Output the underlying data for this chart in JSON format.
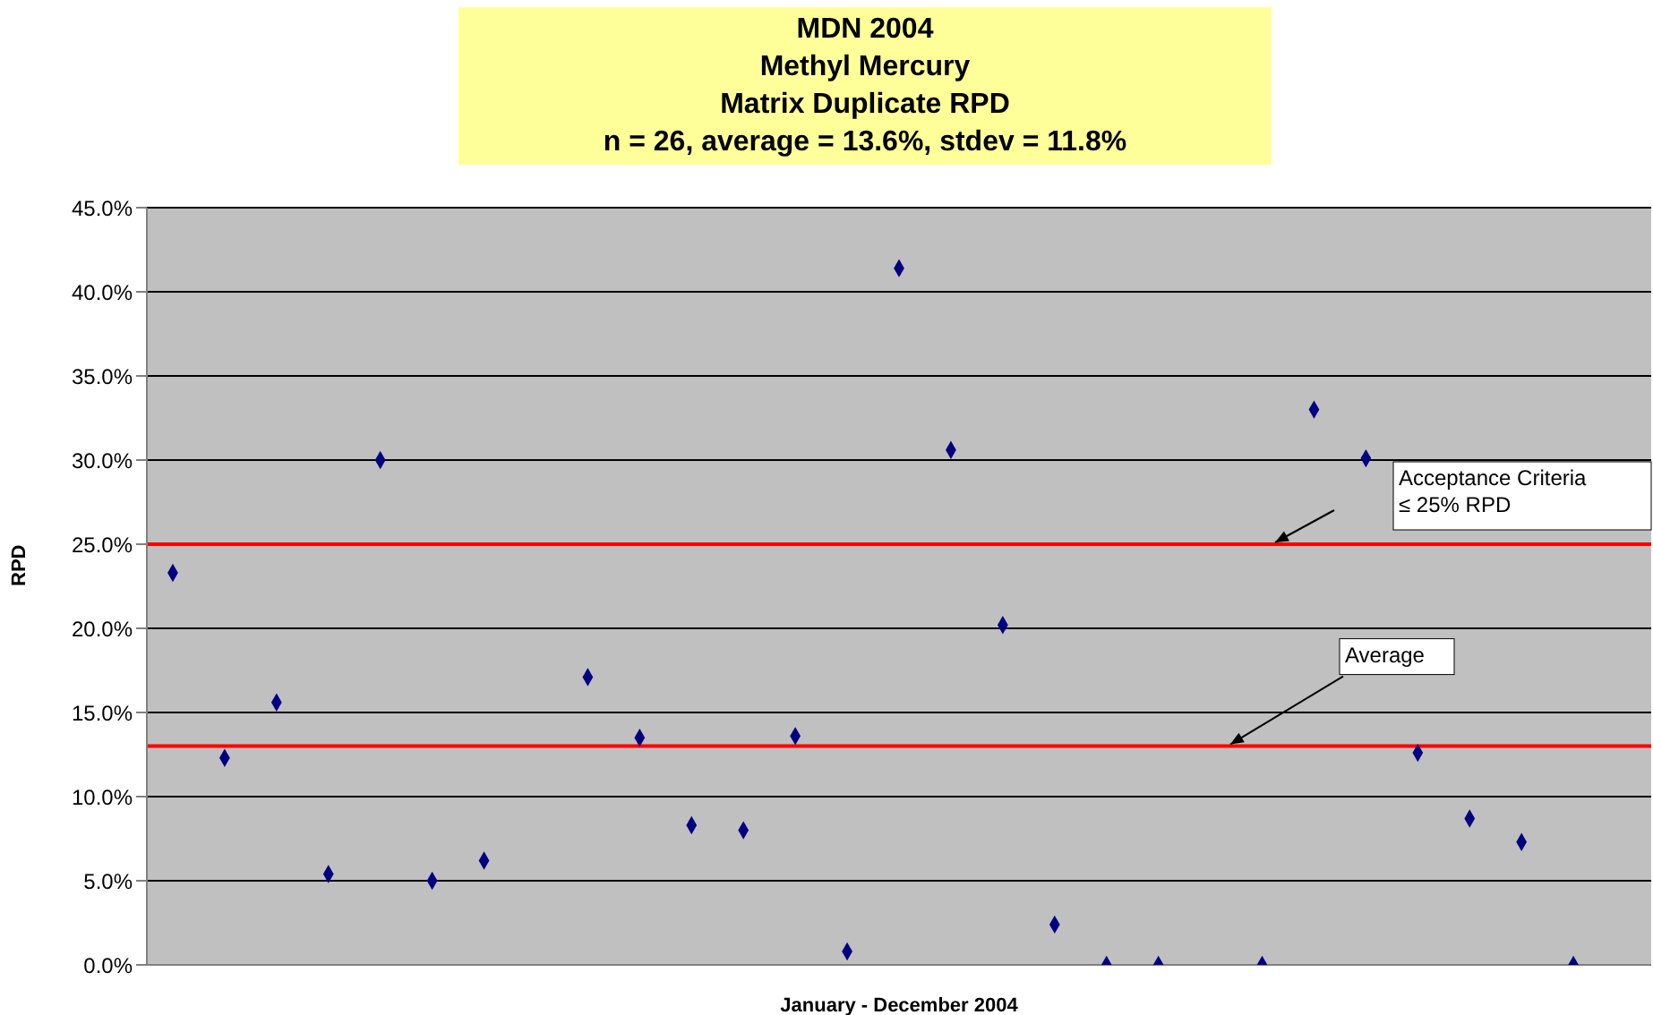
{
  "chart_data": {
    "type": "scatter",
    "title": "MDN 2004\nMethyl Mercury\nMatrix Duplicate RPD",
    "subtitle": "n = 26, average = 13.6%, stdev = 11.8%",
    "xlabel": "January - December 2004",
    "ylabel": "RPD",
    "categories": [
      null,
      null,
      null,
      null,
      null,
      null,
      null,
      null,
      null,
      null,
      null,
      null,
      null,
      null,
      null,
      null,
      null,
      null,
      null,
      null,
      null,
      null,
      null,
      null,
      null,
      null,
      null,
      null,
      null
    ],
    "series": [
      {
        "color": "#000080",
        "values": [
          23.3,
          12.3,
          15.6,
          5.4,
          30.0,
          5.0,
          6.2,
          null,
          17.1,
          13.5,
          8.3,
          8.0,
          13.6,
          0.8,
          41.4,
          30.6,
          20.2,
          2.4,
          0,
          0,
          null,
          0,
          33.0,
          30.1,
          12.6,
          8.7,
          7.3,
          0,
          null
        ]
      }
    ],
    "ylim": [
      0,
      45
    ],
    "yticks": [
      {
        "value": 0,
        "label": "0.0%"
      },
      {
        "value": 5,
        "label": "5.0%"
      },
      {
        "value": 10,
        "label": "10.0%"
      },
      {
        "value": 15,
        "label": "15.0%"
      },
      {
        "value": 20,
        "label": "20.0%"
      },
      {
        "value": 25,
        "label": "25.0%"
      },
      {
        "value": 30,
        "label": "30.0%"
      },
      {
        "value": 35,
        "label": "35.0%"
      },
      {
        "value": 40,
        "label": "40.0%"
      },
      {
        "value": 45,
        "label": "45.0%"
      }
    ],
    "ref_lines": [
      {
        "axis": "y",
        "value": 25,
        "label": "Acceptance Criteria\n≤ 25% RPD",
        "color": "#ff0000"
      },
      {
        "axis": "y",
        "value": 13,
        "label": "Average",
        "color": "#ff0000"
      }
    ],
    "grid": "y",
    "marker": "diamond",
    "tick_labels": "y"
  }
}
